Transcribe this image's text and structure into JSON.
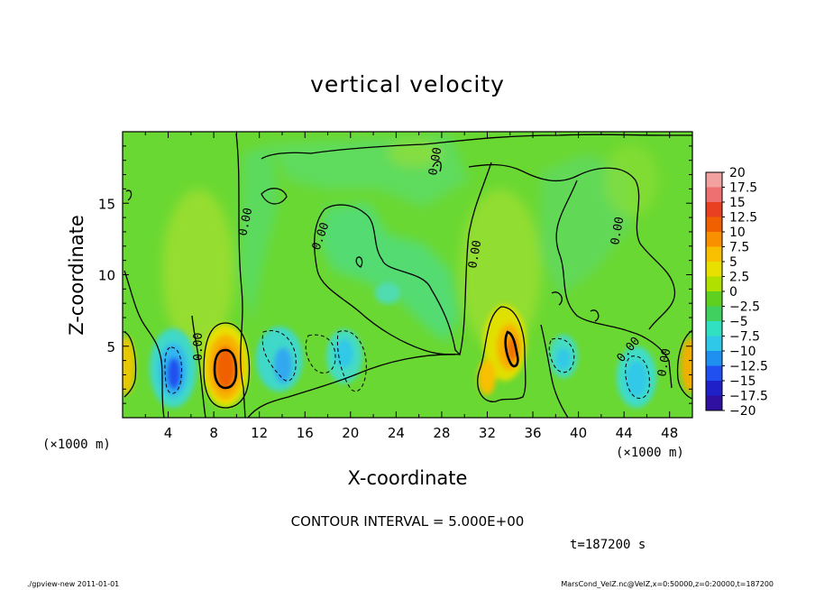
{
  "chart_data": {
    "type": "heatmap",
    "title": "vertical velocity",
    "xlabel": "X-coordinate",
    "ylabel": "Z-coordinate",
    "x_unit_label": "(×1000 m)",
    "y_unit_label": "(×1000 m)",
    "xlim": [
      0,
      50
    ],
    "ylim": [
      0,
      20
    ],
    "x_ticks": [
      4,
      8,
      12,
      16,
      20,
      24,
      28,
      32,
      36,
      40,
      44,
      48
    ],
    "y_ticks": [
      5,
      10,
      15
    ],
    "contour_interval_text": "CONTOUR INTERVAL = 5.000E+00",
    "time_text": "t=187200 s",
    "contour_labels": [
      "0.00",
      "0.00",
      "0.00",
      "0.00",
      "0.00",
      "0.00",
      "0.00",
      "0.00"
    ],
    "colorbar": {
      "labels": [
        "20",
        "17.5",
        "15",
        "12.5",
        "10",
        "7.5",
        "5",
        "2.5",
        "0",
        "−2.5",
        "−5",
        "−7.5",
        "−10",
        "−12.5",
        "−15",
        "−17.5",
        "−20"
      ],
      "colors": [
        "#f2a0a0",
        "#ee7070",
        "#e84020",
        "#f06000",
        "#f89000",
        "#f8c000",
        "#e8e000",
        "#b0e000",
        "#60d020",
        "#40d060",
        "#30e0c0",
        "#30c8e8",
        "#2090f0",
        "#2050f0",
        "#2020c8",
        "#3010a0",
        "#6010a0"
      ]
    },
    "features": [
      {
        "sign": "updraft",
        "x": 9,
        "z": 3.5,
        "peak": 12
      },
      {
        "sign": "updraft",
        "x": 33.5,
        "z": 5,
        "peak": 10
      },
      {
        "sign": "updraft",
        "x": 31.5,
        "z": 2.8,
        "peak": 7
      },
      {
        "sign": "updraft",
        "x": 0.4,
        "z": 3.5,
        "peak": 6
      },
      {
        "sign": "updraft",
        "x": 49.7,
        "z": 3.8,
        "peak": 7
      },
      {
        "sign": "downdraft",
        "x": 4.7,
        "z": 2.5,
        "peak": -11
      },
      {
        "sign": "downdraft",
        "x": 14,
        "z": 3.5,
        "peak": -6
      },
      {
        "sign": "downdraft",
        "x": 19,
        "z": 4,
        "peak": -4
      },
      {
        "sign": "downdraft",
        "x": 38.5,
        "z": 4,
        "peak": -4
      },
      {
        "sign": "downdraft",
        "x": 44.5,
        "z": 2.5,
        "peak": -5
      },
      {
        "sign": "downdraft",
        "x": 22,
        "z": 11,
        "peak": -2
      }
    ]
  },
  "footer": {
    "left": "./gpview-new  2011-01-01",
    "right": "MarsCond_VelZ.nc@VelZ,x=0:50000,z=0:20000,t=187200"
  }
}
